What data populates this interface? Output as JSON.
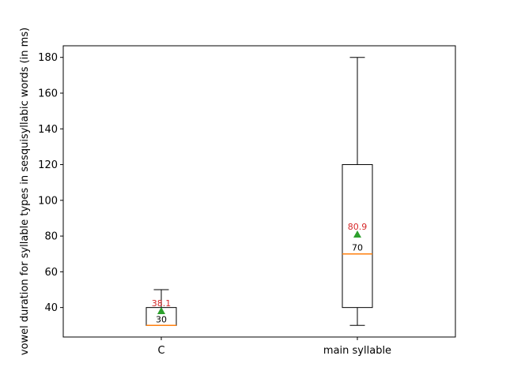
{
  "chart_data": {
    "type": "box",
    "ylabel": "vowel duration for syllable types in sesquisyllabic words (in ms)",
    "xlabel": "",
    "ylim": [
      23.5,
      186.5
    ],
    "yticks": [
      40,
      60,
      80,
      100,
      120,
      140,
      160,
      180
    ],
    "grid": false,
    "categories": [
      "C",
      "main syllable"
    ],
    "boxes": [
      {
        "category": "C",
        "whisker_low": 30,
        "q1": 30,
        "median": 30,
        "q3": 40,
        "whisker_high": 50,
        "mean": 38.1,
        "median_label": "30",
        "mean_label": "38.1"
      },
      {
        "category": "main syllable",
        "whisker_low": 30,
        "q1": 40,
        "median": 70,
        "q3": 120,
        "whisker_high": 180,
        "mean": 80.9,
        "median_label": "70",
        "mean_label": "80.9"
      }
    ],
    "colors": {
      "box": "#000000",
      "median": "#ff7f0e",
      "mean_marker": "#2ca02c",
      "mean_label": "#d62728",
      "median_label": "#000000"
    }
  }
}
